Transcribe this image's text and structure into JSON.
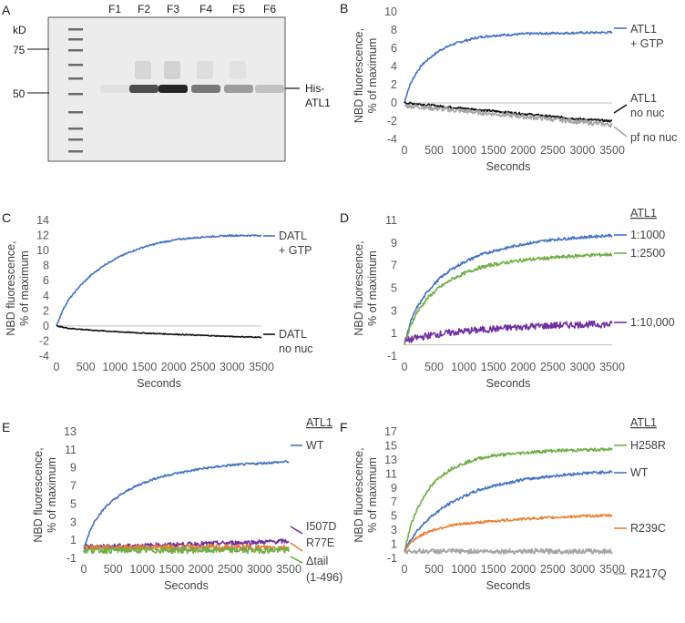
{
  "gel": {
    "panel_label": "A",
    "kd_label": "kD",
    "lanes": [
      "F1",
      "F2",
      "F3",
      "F4",
      "F5",
      "F6"
    ],
    "markers": [
      "75",
      "50"
    ],
    "band_label_line1": "His-",
    "band_label_line2": "ATL1",
    "band_intensity": [
      0.05,
      0.75,
      0.95,
      0.55,
      0.38,
      0.2
    ]
  },
  "chart_data": [
    {
      "panel": "B",
      "type": "line",
      "xlabel": "Seconds",
      "ylabel_line1": "NBD fluorescence,",
      "ylabel_line2": "% of maximum",
      "xlim": [
        0,
        3500
      ],
      "ylim": [
        -4,
        10
      ],
      "xticks": [
        "0",
        "500",
        "1000",
        "1500",
        "2000",
        "2500",
        "3000",
        "3500"
      ],
      "yticks": [
        "-4",
        "-2",
        "0",
        "2",
        "4",
        "6",
        "8",
        "10"
      ],
      "series": [
        {
          "name": "ATL1 + GTP",
          "label_lines": [
            "ATL1",
            "+ GTP"
          ],
          "color": "#4472c4",
          "x": [
            0,
            50,
            100,
            200,
            300,
            400,
            600,
            800,
            1000,
            1250,
            1500,
            1800,
            2100,
            2500,
            3000,
            3500
          ],
          "y": [
            0,
            1.2,
            2.1,
            3.3,
            4.2,
            4.8,
            5.8,
            6.4,
            6.8,
            7.2,
            7.4,
            7.5,
            7.6,
            7.65,
            7.7,
            7.75
          ],
          "noise": 0.12
        },
        {
          "name": "ATL1 no nuc",
          "label_lines": [
            "ATL1",
            "no nuc"
          ],
          "color": "#111111",
          "x": [
            0,
            200,
            500,
            1000,
            1500,
            2000,
            2500,
            3000,
            3500
          ],
          "y": [
            0,
            -0.1,
            -0.3,
            -0.6,
            -0.9,
            -1.2,
            -1.5,
            -1.8,
            -2.0
          ],
          "noise": 0.12
        },
        {
          "name": "pf no nuc",
          "label_lines": [
            "pf no nuc"
          ],
          "color": "#a5a5a5",
          "x": [
            0,
            200,
            500,
            1000,
            1500,
            2000,
            2500,
            3000,
            3500
          ],
          "y": [
            -0.3,
            -0.4,
            -0.6,
            -0.9,
            -1.2,
            -1.5,
            -1.8,
            -2.1,
            -2.4
          ],
          "noise": 0.25
        }
      ]
    },
    {
      "panel": "C",
      "type": "line",
      "xlabel": "Seconds",
      "ylabel_line1": "NBD fluorescence,",
      "ylabel_line2": "% of maximum",
      "xlim": [
        0,
        3500
      ],
      "ylim": [
        -4,
        14
      ],
      "xticks": [
        "0",
        "500",
        "1000",
        "1500",
        "2000",
        "2500",
        "3000",
        "3500"
      ],
      "yticks": [
        "-4",
        "-2",
        "0",
        "2",
        "4",
        "6",
        "8",
        "10",
        "12",
        "14"
      ],
      "series": [
        {
          "name": "DATL + GTP",
          "label_lines": [
            "DATL",
            "+ GTP"
          ],
          "color": "#4472c4",
          "x": [
            0,
            100,
            200,
            400,
            600,
            800,
            1000,
            1250,
            1500,
            1800,
            2100,
            2500,
            3000,
            3500
          ],
          "y": [
            0,
            2.0,
            3.4,
            5.3,
            6.8,
            8.0,
            8.9,
            9.8,
            10.5,
            11.1,
            11.5,
            11.8,
            12.0,
            12.0
          ],
          "noise": 0.1
        },
        {
          "name": "DATL no nuc",
          "label_lines": [
            "DATL",
            "no nuc"
          ],
          "color": "#111111",
          "x": [
            0,
            200,
            500,
            1000,
            1500,
            2000,
            2500,
            3000,
            3500
          ],
          "y": [
            0,
            -0.3,
            -0.5,
            -0.75,
            -0.95,
            -1.1,
            -1.25,
            -1.4,
            -1.5
          ],
          "noise": 0.06
        }
      ]
    },
    {
      "panel": "D",
      "type": "line",
      "xlabel": "Seconds",
      "ylabel_line1": "NBD fluorescence,",
      "ylabel_line2": "% of maximum",
      "legend_title": "ATL1",
      "xlim": [
        0,
        3500
      ],
      "ylim": [
        -1,
        11
      ],
      "xticks": [
        "0",
        "500",
        "1000",
        "1500",
        "2000",
        "2500",
        "3000",
        "3500"
      ],
      "yticks": [
        "-1",
        "1",
        "3",
        "5",
        "7",
        "9",
        "11"
      ],
      "series": [
        {
          "name": "1:1000",
          "label_lines": [
            "1:1000"
          ],
          "color": "#4472c4",
          "x": [
            0,
            100,
            200,
            400,
            600,
            800,
            1000,
            1250,
            1500,
            2000,
            2500,
            3000,
            3500
          ],
          "y": [
            0,
            2.0,
            3.2,
            4.8,
            5.9,
            6.7,
            7.3,
            7.9,
            8.3,
            8.9,
            9.3,
            9.5,
            9.7
          ],
          "noise": 0.12
        },
        {
          "name": "1:2500",
          "label_lines": [
            "1:2500"
          ],
          "color": "#70ad47",
          "x": [
            0,
            100,
            200,
            400,
            600,
            800,
            1000,
            1250,
            1500,
            2000,
            2500,
            3000,
            3500
          ],
          "y": [
            0,
            1.6,
            2.8,
            4.2,
            5.1,
            5.8,
            6.3,
            6.8,
            7.1,
            7.5,
            7.7,
            7.9,
            8.0
          ],
          "noise": 0.15
        },
        {
          "name": "1:10,000",
          "label_lines": [
            "1:10,000"
          ],
          "color": "#7030a0",
          "x": [
            0,
            200,
            500,
            1000,
            1500,
            2000,
            2500,
            3000,
            3500
          ],
          "y": [
            0.3,
            0.6,
            0.9,
            1.2,
            1.4,
            1.6,
            1.7,
            1.8,
            1.8
          ],
          "noise": 0.3
        }
      ]
    },
    {
      "panel": "E",
      "type": "line",
      "xlabel": "Seconds",
      "ylabel_line1": "NBD fluorescence,",
      "ylabel_line2": "% of maximum",
      "legend_title": "ATL1",
      "xlim": [
        0,
        3500
      ],
      "ylim": [
        -1,
        13
      ],
      "xticks": [
        "0",
        "500",
        "1000",
        "1500",
        "2000",
        "2500",
        "3000",
        "3500"
      ],
      "yticks": [
        "-1",
        "1",
        "3",
        "5",
        "7",
        "9",
        "11",
        "13"
      ],
      "series": [
        {
          "name": "WT",
          "label_lines": [
            "WT"
          ],
          "color": "#4472c4",
          "x": [
            0,
            100,
            200,
            400,
            600,
            800,
            1000,
            1250,
            1500,
            2000,
            2500,
            3000,
            3500
          ],
          "y": [
            0,
            2.0,
            3.3,
            4.9,
            5.9,
            6.7,
            7.3,
            7.9,
            8.3,
            8.9,
            9.3,
            9.5,
            9.7
          ],
          "noise": 0.12
        },
        {
          "name": "I507D",
          "label_lines": [
            "I507D"
          ],
          "color": "#7030a0",
          "x": [
            0,
            1000,
            2000,
            3000,
            3500
          ],
          "y": [
            0.3,
            0.4,
            0.6,
            0.8,
            0.9
          ],
          "noise": 0.25
        },
        {
          "name": "R77E",
          "label_lines": [
            "R77E"
          ],
          "color": "#ed7d31",
          "x": [
            0,
            1000,
            2000,
            3000,
            3500
          ],
          "y": [
            0.2,
            0.2,
            0.2,
            0.2,
            0.2
          ],
          "noise": 0.3
        },
        {
          "name": "Δtail (1-496)",
          "label_lines": [
            "Δtail",
            "(1-496)"
          ],
          "color": "#70ad47",
          "x": [
            0,
            1000,
            2000,
            3000,
            3500
          ],
          "y": [
            -0.1,
            -0.1,
            -0.1,
            -0.1,
            -0.1
          ],
          "noise": 0.35
        }
      ]
    },
    {
      "panel": "F",
      "type": "line",
      "xlabel": "Seconds",
      "ylabel_line1": "NBD fluorescence,",
      "ylabel_line2": "% of maximum",
      "legend_title": "ATL1",
      "xlim": [
        0,
        3500
      ],
      "ylim": [
        -1,
        17
      ],
      "xticks": [
        "0",
        "500",
        "1000",
        "1500",
        "2000",
        "2500",
        "3000",
        "3500"
      ],
      "yticks": [
        "-1",
        "1",
        "3",
        "5",
        "7",
        "9",
        "11",
        "13",
        "15",
        "17"
      ],
      "series": [
        {
          "name": "H258R",
          "label_lines": [
            "H258R"
          ],
          "color": "#70ad47",
          "x": [
            0,
            100,
            200,
            400,
            600,
            800,
            1000,
            1250,
            1500,
            2000,
            2500,
            3000,
            3500
          ],
          "y": [
            0,
            3.5,
            5.8,
            8.8,
            10.6,
            11.8,
            12.5,
            13.2,
            13.6,
            14.0,
            14.3,
            14.4,
            14.5
          ],
          "noise": 0.22
        },
        {
          "name": "WT",
          "label_lines": [
            "WT"
          ],
          "color": "#4472c4",
          "x": [
            0,
            100,
            200,
            400,
            600,
            800,
            1000,
            1250,
            1500,
            2000,
            2500,
            3000,
            3500
          ],
          "y": [
            0,
            1.6,
            2.8,
            4.6,
            5.9,
            7.0,
            7.8,
            8.7,
            9.3,
            10.2,
            10.7,
            11.1,
            11.3
          ],
          "noise": 0.2
        },
        {
          "name": "R239C",
          "label_lines": [
            "R239C"
          ],
          "color": "#ed7d31",
          "x": [
            0,
            100,
            200,
            400,
            600,
            800,
            1000,
            1500,
            2000,
            2500,
            3000,
            3500
          ],
          "y": [
            0,
            1.2,
            1.9,
            2.8,
            3.3,
            3.7,
            3.9,
            4.3,
            4.6,
            4.8,
            5.0,
            5.1
          ],
          "noise": 0.18
        },
        {
          "name": "R217Q",
          "label_lines": [
            "R217Q"
          ],
          "color": "#a5a5a5",
          "x": [
            0,
            1000,
            2000,
            3000,
            3500
          ],
          "y": [
            0,
            0,
            0,
            0,
            0
          ],
          "noise": 0.35
        }
      ]
    }
  ]
}
